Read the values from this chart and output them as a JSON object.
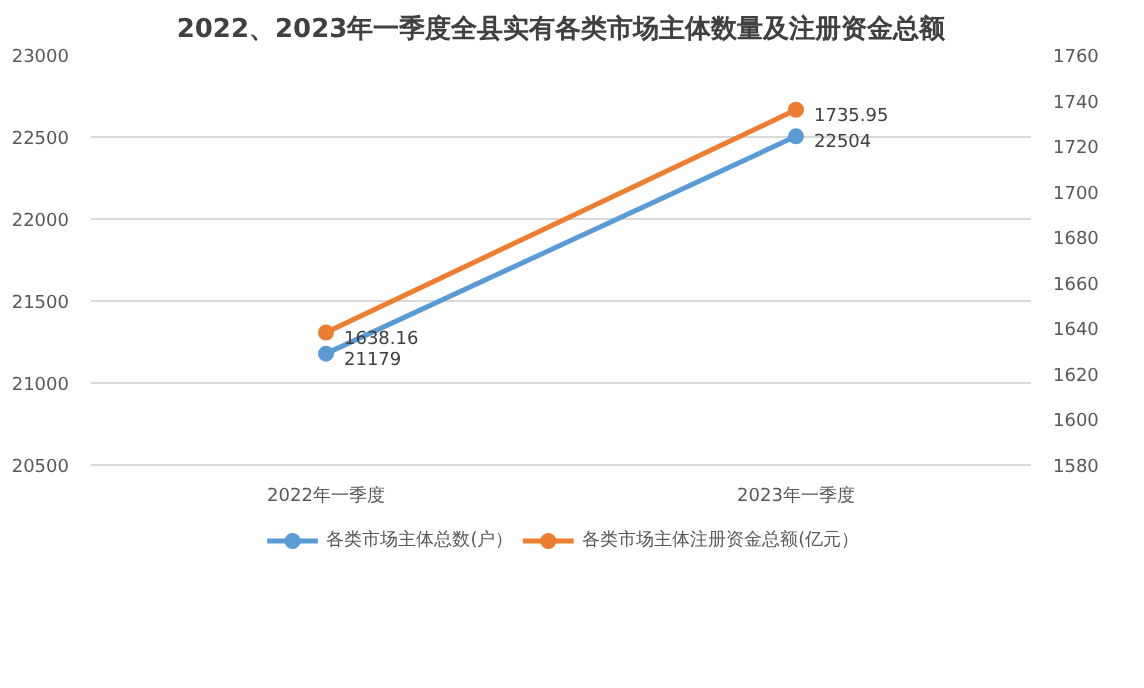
{
  "chart_data": {
    "type": "line",
    "title": "2022、2023年一季度全县实有各类市场主体数量及注册资金总额",
    "categories": [
      "2022年一季度",
      "2023年一季度"
    ],
    "series": [
      {
        "name": "各类市场主体总数(户）",
        "color": "#5b9bd5",
        "values": [
          21179,
          22504
        ]
      },
      {
        "name": "各类市场主体注册资金总额(亿元）",
        "color": "#ed7d31",
        "values": [
          1638.16,
          1735.95
        ],
        "axis": "y2"
      }
    ],
    "ylim": [
      20500,
      23000
    ],
    "yticks": [
      20500,
      21000,
      21500,
      22000,
      22500,
      23000
    ],
    "y2lim": [
      1580,
      1760
    ],
    "y2ticks": [
      1580,
      1600,
      1620,
      1640,
      1660,
      1680,
      1700,
      1720,
      1740,
      1760
    ],
    "data_labels": true,
    "grid": "y",
    "legend": "bottom",
    "marker": "circle"
  }
}
